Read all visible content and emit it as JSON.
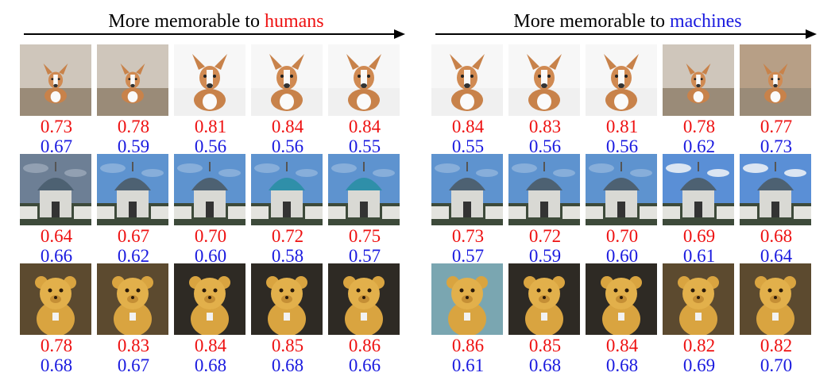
{
  "panels": [
    {
      "heading_prefix": "More memorable to ",
      "heading_highlight": "humans",
      "highlight_color": "#ee1111",
      "rows": [
        {
          "subject": "dog",
          "human": [
            "0.73",
            "0.78",
            "0.81",
            "0.84",
            "0.84"
          ],
          "machine": [
            "0.67",
            "0.59",
            "0.56",
            "0.56",
            "0.55"
          ]
        },
        {
          "subject": "domed-building",
          "human": [
            "0.64",
            "0.67",
            "0.70",
            "0.72",
            "0.75"
          ],
          "machine": [
            "0.66",
            "0.62",
            "0.60",
            "0.58",
            "0.57"
          ]
        },
        {
          "subject": "teddy-bear",
          "human": [
            "0.78",
            "0.83",
            "0.84",
            "0.85",
            "0.86"
          ],
          "machine": [
            "0.68",
            "0.67",
            "0.68",
            "0.68",
            "0.66"
          ]
        }
      ]
    },
    {
      "heading_prefix": "More memorable to ",
      "heading_highlight": "machines",
      "highlight_color": "#1a1adf",
      "rows": [
        {
          "subject": "dog",
          "human": [
            "0.84",
            "0.83",
            "0.81",
            "0.78",
            "0.77"
          ],
          "machine": [
            "0.55",
            "0.56",
            "0.56",
            "0.62",
            "0.73"
          ]
        },
        {
          "subject": "domed-building",
          "human": [
            "0.73",
            "0.72",
            "0.70",
            "0.69",
            "0.68"
          ],
          "machine": [
            "0.57",
            "0.59",
            "0.60",
            "0.61",
            "0.64"
          ]
        },
        {
          "subject": "teddy-bear",
          "human": [
            "0.86",
            "0.85",
            "0.84",
            "0.82",
            "0.82"
          ],
          "machine": [
            "0.61",
            "0.68",
            "0.68",
            "0.69",
            "0.70"
          ]
        }
      ]
    }
  ],
  "colors": {
    "human_score": "#ee1111",
    "machine_score": "#1a1adf"
  }
}
